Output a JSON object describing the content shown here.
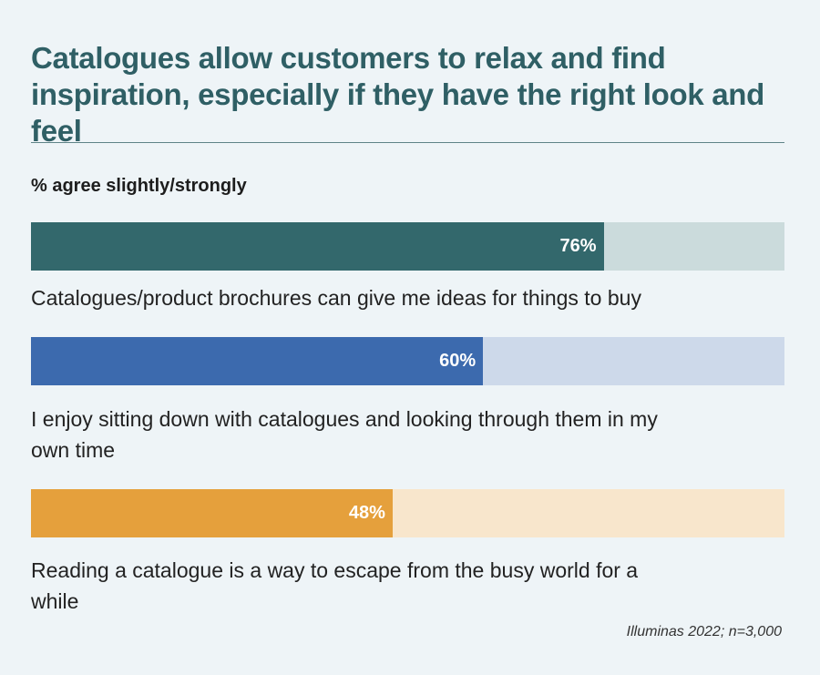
{
  "title": "Catalogues allow customers to relax and find inspiration, especially if they have the right look and feel",
  "subtitle": "% agree slightly/strongly",
  "source": "Illuminas 2022; n=3,000",
  "chart_data": {
    "type": "bar",
    "orientation": "horizontal",
    "xlim": [
      0,
      100
    ],
    "unit": "%",
    "categories": [
      "Catalogues/product brochures can give me ideas for things to buy",
      "I enjoy sitting down with catalogues and looking through them in my own time",
      "Reading a catalogue is a way to escape from the busy world for a while"
    ],
    "values": [
      76,
      60,
      48
    ],
    "value_labels": [
      "76%",
      "60%",
      "48%"
    ],
    "bar_colors": [
      "#33686c",
      "#3c6aae",
      "#e5a03c"
    ],
    "track_colors": [
      "#cbdbdc",
      "#cdd9ea",
      "#f8e6cc"
    ],
    "grid": false,
    "legend": "none"
  }
}
